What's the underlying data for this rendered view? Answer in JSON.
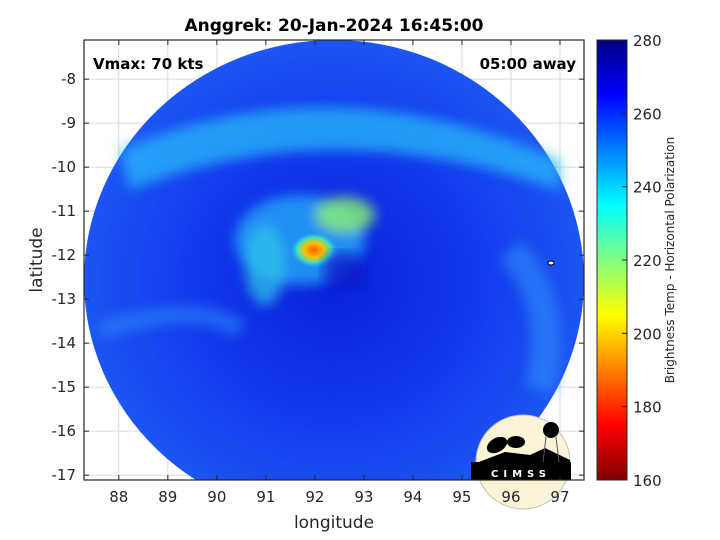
{
  "title": "Anggrek: 20-Jan-2024 16:45:00",
  "annotations": {
    "vmax": "Vmax: 70 kts",
    "time_away": "05:00 away"
  },
  "axes": {
    "xlabel": "longitude",
    "ylabel": "latitude",
    "xlim": [
      87.29,
      97.49
    ],
    "ylim": [
      -17.11,
      -7.11
    ],
    "xticks": [
      "88",
      "89",
      "90",
      "91",
      "92",
      "93",
      "94",
      "95",
      "96",
      "97"
    ],
    "yticks": [
      "-8",
      "-9",
      "-10",
      "-11",
      "-12",
      "-13",
      "-14",
      "-15",
      "-16",
      "-17"
    ],
    "grid": true
  },
  "colorbar": {
    "label": "Brightness Temp - Horizontal Polarization",
    "range": [
      160,
      280
    ],
    "ticks": [
      "280",
      "260",
      "240",
      "220",
      "200",
      "180",
      "160"
    ],
    "colormap": "jet"
  },
  "logo": {
    "text": "CIMSS"
  },
  "colors": {
    "background_blue": "#1a3cf0",
    "eye_warm": "#ff7a00"
  }
}
